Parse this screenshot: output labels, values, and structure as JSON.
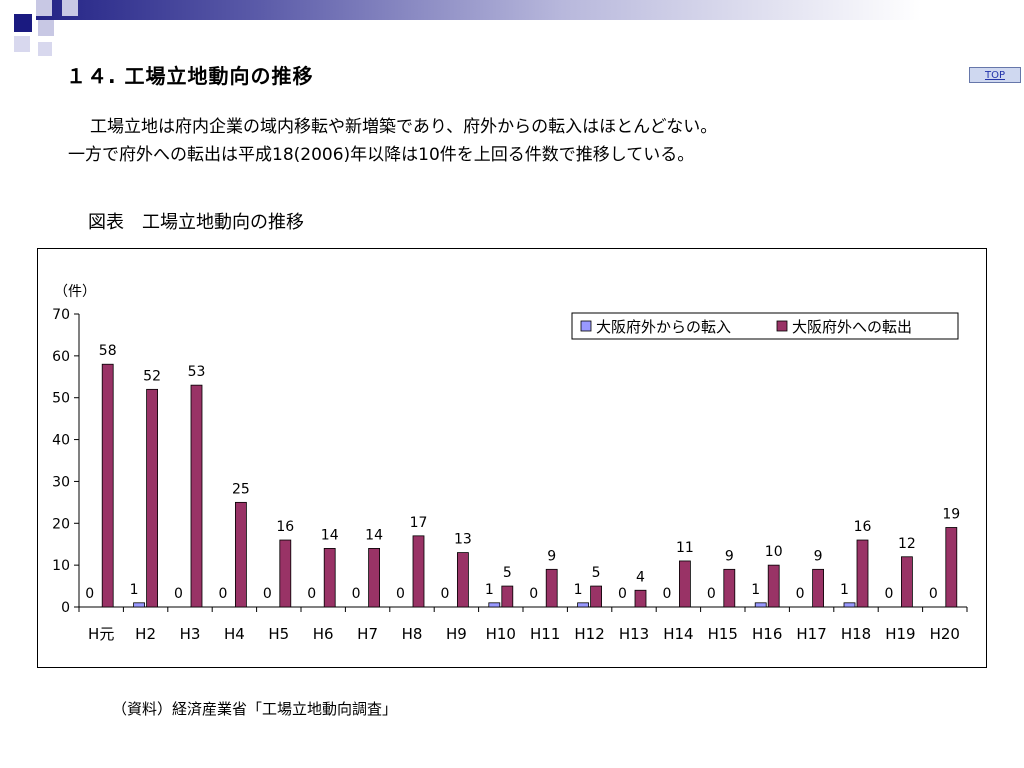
{
  "header": {
    "title": "１４. 工場立地動向の推移",
    "top_link": "TOP"
  },
  "description": {
    "line1": "工場立地は府内企業の域内移転や新増築であり、府外からの転入はほとんどない。",
    "line2": "一方で府外への転出は平成18(2006)年以降は10件を上回る件数で推移している。"
  },
  "figure_title": "図表　工場立地動向の推移",
  "source": "（資料）経済産業省「工場立地動向調査」",
  "colors": {
    "inflow": "#9999ff",
    "outflow": "#993366"
  },
  "chart_data": {
    "type": "bar",
    "title": "",
    "ylabel": "（件）",
    "xlabel": "",
    "ylim": [
      0,
      70
    ],
    "yticks": [
      0,
      10,
      20,
      30,
      40,
      50,
      60,
      70
    ],
    "grid": false,
    "legend_position": "top-right",
    "categories": [
      "H元",
      "H2",
      "H3",
      "H4",
      "H5",
      "H6",
      "H7",
      "H8",
      "H9",
      "H10",
      "H11",
      "H12",
      "H13",
      "H14",
      "H15",
      "H16",
      "H17",
      "H18",
      "H19",
      "H20"
    ],
    "series": [
      {
        "name": "大阪府外からの転入",
        "values": [
          0,
          1,
          0,
          0,
          0,
          0,
          0,
          0,
          0,
          1,
          0,
          1,
          0,
          0,
          0,
          1,
          0,
          1,
          0,
          0
        ]
      },
      {
        "name": "大阪府外への転出",
        "values": [
          58,
          52,
          53,
          25,
          16,
          14,
          14,
          17,
          13,
          5,
          9,
          5,
          4,
          11,
          9,
          10,
          9,
          16,
          12,
          19
        ]
      }
    ]
  }
}
